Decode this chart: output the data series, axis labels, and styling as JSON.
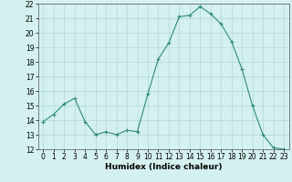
{
  "x": [
    0,
    1,
    2,
    3,
    4,
    5,
    6,
    7,
    8,
    9,
    10,
    11,
    12,
    13,
    14,
    15,
    16,
    17,
    18,
    19,
    20,
    21,
    22,
    23
  ],
  "y": [
    13.9,
    14.4,
    15.1,
    15.5,
    13.9,
    13.0,
    13.2,
    13.0,
    13.3,
    13.2,
    15.8,
    18.2,
    19.3,
    21.1,
    21.2,
    21.8,
    21.3,
    20.6,
    19.4,
    17.5,
    15.0,
    13.0,
    12.1,
    12.0
  ],
  "line_color": "#2e8b74",
  "marker": "+",
  "marker_size": 3,
  "marker_lw": 0.8,
  "bg_color": "#d4f0f0",
  "grid_color": "#b0d8d8",
  "xlabel": "Humidex (Indice chaleur)",
  "ylim": [
    12,
    22
  ],
  "xlim": [
    -0.5,
    23.5
  ],
  "yticks": [
    12,
    13,
    14,
    15,
    16,
    17,
    18,
    19,
    20,
    21,
    22
  ],
  "xticks": [
    0,
    1,
    2,
    3,
    4,
    5,
    6,
    7,
    8,
    9,
    10,
    11,
    12,
    13,
    14,
    15,
    16,
    17,
    18,
    19,
    20,
    21,
    22,
    23
  ],
  "xlabel_fontsize": 6.5,
  "tick_fontsize": 5.5,
  "line_width": 0.8,
  "spine_color": "#555555"
}
